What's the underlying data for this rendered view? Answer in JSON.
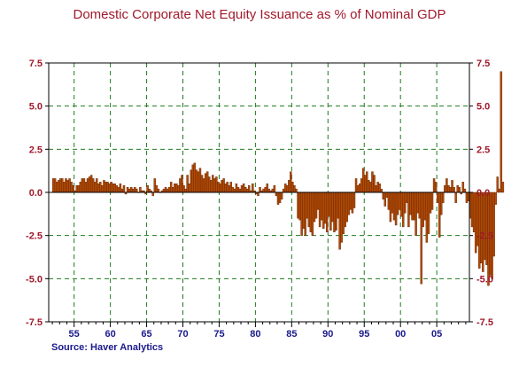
{
  "chart_data": {
    "type": "bar",
    "title": "Domestic Corporate Net Equity Issuance as % of Nominal GDP",
    "source": "Source: Haver Analytics",
    "xlabel": "",
    "ylabel": "",
    "ylim": [
      -7.5,
      7.5
    ],
    "yticks": [
      "7.5",
      "5.0",
      "2.5",
      "0.0",
      "-2.5",
      "-5.0",
      "-7.5"
    ],
    "xticks": [
      "55",
      "60",
      "65",
      "70",
      "75",
      "80",
      "85",
      "90",
      "95",
      "00",
      "05"
    ],
    "grid": true,
    "colors": {
      "bar": "#b34a06",
      "bar_edge": "#5a2200",
      "grid": "#1f7a1f",
      "title": "#a0192b",
      "tick": "#1a1a8c"
    },
    "x_start": 1952.0,
    "x_step": 0.25,
    "values": [
      0.8,
      0.8,
      0.6,
      0.7,
      0.8,
      0.8,
      0.6,
      0.8,
      0.7,
      0.8,
      0.6,
      0.4,
      0.1,
      0.4,
      0.4,
      0.6,
      0.8,
      0.8,
      0.6,
      0.8,
      0.9,
      1.0,
      0.8,
      0.6,
      0.8,
      0.5,
      0.6,
      0.4,
      0.7,
      0.6,
      0.6,
      0.5,
      0.6,
      0.5,
      0.5,
      0.4,
      0.3,
      0.5,
      0.2,
      0.4,
      -0.1,
      0.3,
      0.2,
      0.3,
      0.2,
      0.3,
      0.2,
      0.0,
      0.3,
      0.1,
      0.1,
      -0.1,
      0.4,
      0.2,
      0.1,
      -0.2,
      0.8,
      0.4,
      0.2,
      0.0,
      0.1,
      0.2,
      0.3,
      0.2,
      0.3,
      0.6,
      0.3,
      0.5,
      0.5,
      0.4,
      0.8,
      1.0,
      0.4,
      0.2,
      1.0,
      0.5,
      1.3,
      1.6,
      1.7,
      1.3,
      1.2,
      1.4,
      1.0,
      0.8,
      1.1,
      1.2,
      0.9,
      0.7,
      1.0,
      0.8,
      0.9,
      0.6,
      0.5,
      0.7,
      0.8,
      0.5,
      0.6,
      0.4,
      0.6,
      0.3,
      0.2,
      0.5,
      0.3,
      0.2,
      0.4,
      0.5,
      0.3,
      0.2,
      0.4,
      0.1,
      0.5,
      0.1,
      -0.1,
      -0.2,
      0.3,
      0.1,
      0.2,
      0.3,
      0.5,
      0.2,
      0.1,
      0.2,
      0.4,
      -0.2,
      -0.7,
      -0.6,
      -0.4,
      0.2,
      0.5,
      0.4,
      0.7,
      1.2,
      0.6,
      0.4,
      0.2,
      -1.5,
      -1.6,
      -2.5,
      -2.1,
      -2.5,
      -1.5,
      -2.0,
      -2.3,
      -2.5,
      -1.7,
      -1.5,
      -1.0,
      -2.0,
      -1.6,
      -2.1,
      -1.8,
      -2.3,
      -1.4,
      -2.2,
      -1.7,
      -2.3,
      -2.2,
      -1.5,
      -3.3,
      -2.9,
      -2.4,
      -2.0,
      -1.7,
      -1.3,
      -1.0,
      -1.2,
      -0.9,
      0.8,
      0.4,
      0.5,
      0.8,
      1.4,
      1.0,
      1.2,
      0.7,
      0.6,
      1.2,
      1.0,
      0.4,
      0.6,
      0.5,
      0.2,
      -0.4,
      -0.8,
      -0.3,
      -1.0,
      -1.7,
      -1.2,
      -1.6,
      -1.9,
      -1.3,
      -1.0,
      -1.4,
      -2.0,
      -1.2,
      -0.6,
      -2.0,
      -1.3,
      -1.6,
      -1.6,
      -2.5,
      -1.2,
      -1.5,
      -5.3,
      -2.0,
      -1.6,
      -2.9,
      -2.4,
      -1.2,
      -1.0,
      0.8,
      0.6,
      -0.6,
      -2.6,
      -1.3,
      -0.6,
      0.4,
      0.8,
      0.4,
      0.3,
      0.7,
      0.3,
      -0.6,
      0.4,
      0.3,
      -0.1,
      0.6,
      0.2,
      -0.6,
      -0.5,
      -1.5,
      -2.0,
      -2.3,
      -3.5,
      -3.1,
      -4.4,
      -4.1,
      -4.6,
      -3.9,
      -4.2,
      -5.4,
      -4.8,
      -5.0,
      -3.7,
      -0.7,
      0.9,
      0.2,
      7.0,
      0.6
    ]
  }
}
